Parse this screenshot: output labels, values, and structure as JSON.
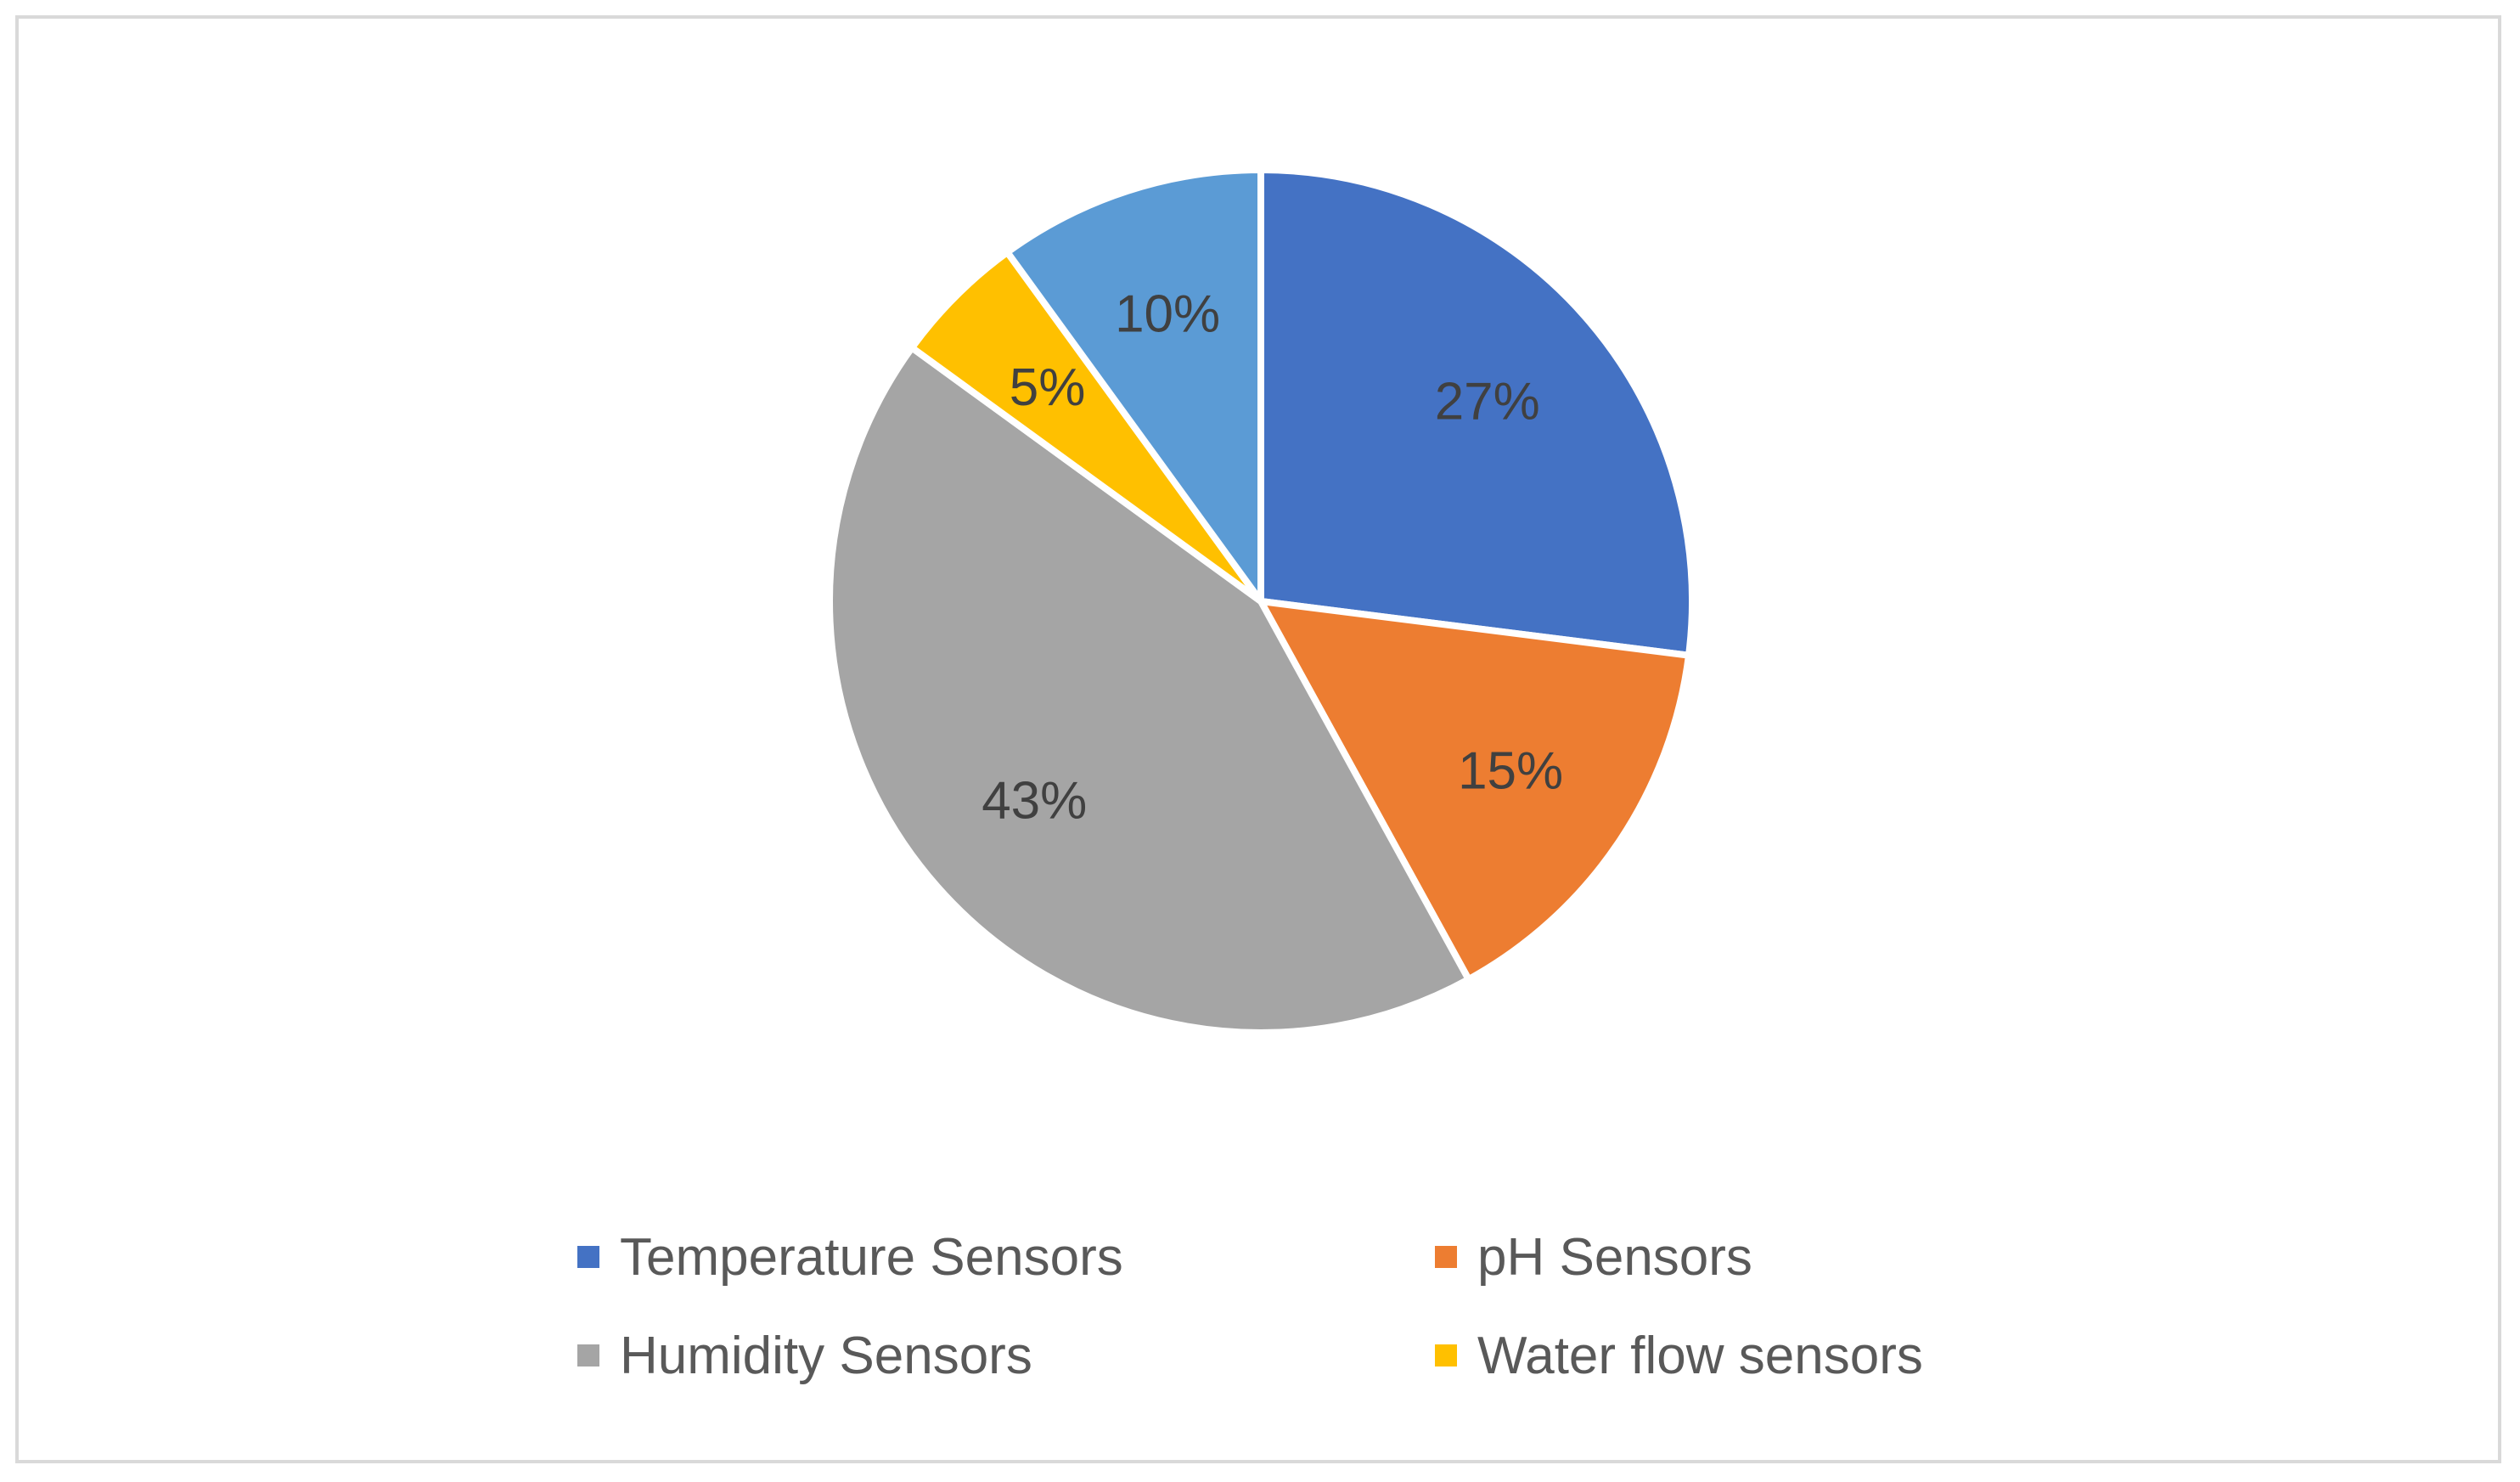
{
  "chart_data": {
    "type": "pie",
    "title": "",
    "categories": [
      "Temperature Sensors",
      "pH Sensors",
      "Humidity Sensors",
      "Water flow sensors",
      ""
    ],
    "values": [
      27,
      15,
      43,
      5,
      10
    ],
    "data_labels": [
      "27%",
      "15%",
      "43%",
      "5%",
      "10%"
    ],
    "colors": [
      "#4472c4",
      "#ed7d31",
      "#a5a5a5",
      "#ffc000",
      "#5b9bd5"
    ],
    "legend": {
      "placement": "bottom",
      "entries": [
        {
          "label": "Temperature Sensors",
          "color": "#4472c4"
        },
        {
          "label": "pH Sensors",
          "color": "#ed7d31"
        },
        {
          "label": "Humidity Sensors",
          "color": "#a5a5a5"
        },
        {
          "label": "Water flow sensors",
          "color": "#ffc000"
        }
      ]
    }
  }
}
